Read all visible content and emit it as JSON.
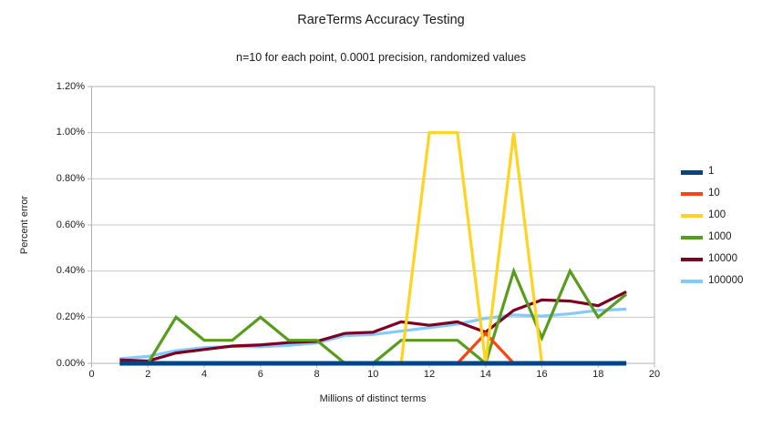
{
  "title": "RareTerms Accuracy Testing",
  "subtitle": "n=10 for each point, 0.0001 precision, randomized values",
  "chart_data": {
    "type": "line",
    "title": "RareTerms Accuracy Testing",
    "subtitle": "n=10 for each point, 0.0001 precision, randomized values",
    "xlabel": "Millions of distinct terms",
    "ylabel": "Percent error",
    "xlim": [
      0,
      20
    ],
    "ylim": [
      0,
      1.2
    ],
    "grid": "horizontal",
    "legend_position": "right",
    "x_ticks": [
      0,
      2,
      4,
      6,
      8,
      10,
      12,
      14,
      16,
      18,
      20
    ],
    "y_ticks": [
      {
        "value": 0.0,
        "label": "0.00%"
      },
      {
        "value": 0.2,
        "label": "0.20%"
      },
      {
        "value": 0.4,
        "label": "0.40%"
      },
      {
        "value": 0.6,
        "label": "0.60%"
      },
      {
        "value": 0.8,
        "label": "0.80%"
      },
      {
        "value": 1.0,
        "label": "1.00%"
      },
      {
        "value": 1.2,
        "label": "1.20%"
      }
    ],
    "x": [
      1,
      2,
      3,
      4,
      5,
      6,
      7,
      8,
      9,
      10,
      11,
      12,
      13,
      14,
      15,
      16,
      17,
      18,
      19
    ],
    "series": [
      {
        "name": "1",
        "color": "#004586",
        "values": [
          0,
          0,
          0,
          0,
          0,
          0,
          0,
          0,
          0,
          0,
          0,
          0,
          0,
          0,
          0,
          0,
          0,
          0,
          0
        ]
      },
      {
        "name": "10",
        "color": "#FF420E",
        "values": [
          0,
          0,
          0,
          0,
          0,
          0,
          0,
          0,
          0,
          0,
          0,
          0,
          0,
          0.13,
          0,
          0,
          0,
          0,
          0
        ]
      },
      {
        "name": "100",
        "color": "#FFD320",
        "values": [
          0,
          0,
          0,
          0,
          0,
          0,
          0,
          0,
          0,
          0,
          0,
          1.0,
          1.0,
          0,
          1.0,
          0,
          0,
          0,
          0
        ]
      },
      {
        "name": "1000",
        "color": "#579D1C",
        "values": [
          0,
          0,
          0.2,
          0.1,
          0.1,
          0.2,
          0.1,
          0.1,
          0,
          0,
          0.1,
          0.1,
          0.1,
          0,
          0.4,
          0.11,
          0.4,
          0.2,
          0.3
        ]
      },
      {
        "name": "10000",
        "color": "#7E0021",
        "values": [
          0.015,
          0.01,
          0.045,
          0.06,
          0.075,
          0.08,
          0.09,
          0.095,
          0.13,
          0.135,
          0.18,
          0.165,
          0.18,
          0.135,
          0.23,
          0.275,
          0.27,
          0.25,
          0.31
        ]
      },
      {
        "name": "100000",
        "color": "#83CAFF",
        "values": [
          0.02,
          0.03,
          0.055,
          0.068,
          0.073,
          0.072,
          0.078,
          0.088,
          0.12,
          0.125,
          0.14,
          0.155,
          0.17,
          0.195,
          0.21,
          0.205,
          0.215,
          0.23,
          0.235
        ]
      }
    ]
  },
  "colors": {
    "grid": "#c8c8c8",
    "border": "#b3b3b3",
    "text": "#1a1a1a",
    "background": "#ffffff"
  }
}
